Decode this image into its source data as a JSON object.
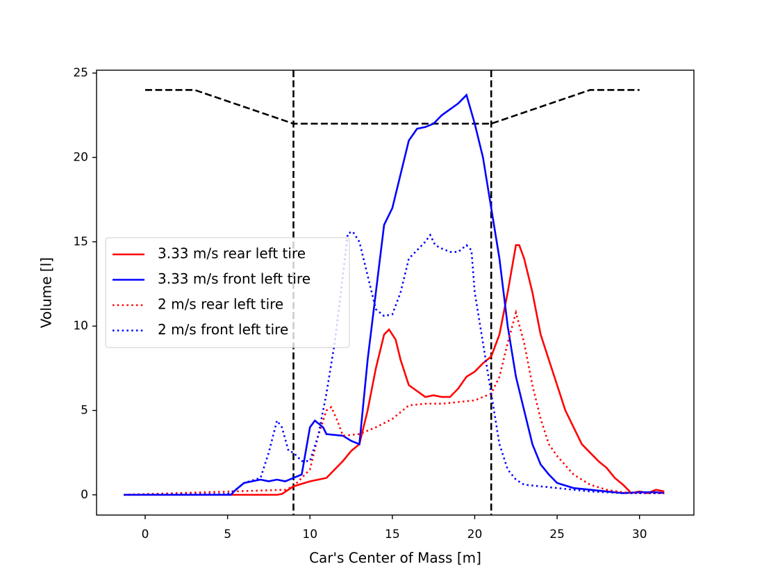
{
  "chart_data": {
    "type": "line",
    "x_label": "Car's Center of Mass [m]",
    "y_label": "Volume [l]",
    "xlim": [
      -2.95,
      33.3
    ],
    "ylim": [
      -1.2,
      25.17
    ],
    "xticks": [
      0,
      5,
      10,
      15,
      20,
      25,
      30
    ],
    "yticks": [
      0,
      5,
      10,
      15,
      20,
      25
    ],
    "grid": false,
    "legend": "center left",
    "vlines": [
      9,
      21
    ],
    "vline_color": "#000000",
    "profile": {
      "color": "#000000",
      "style": "dashed",
      "x": [
        0,
        3,
        9,
        21,
        27,
        30
      ],
      "values": [
        24,
        24,
        22,
        22,
        24,
        24
      ]
    },
    "series": [
      {
        "name": "3.33 m/s rear left tire",
        "color": "#ff0000",
        "style": "solid",
        "x": [
          -1.3,
          5,
          8,
          8.3,
          9,
          10,
          11,
          12,
          12.5,
          13,
          13.5,
          14,
          14.5,
          14.8,
          15.2,
          15.5,
          16,
          17,
          17.5,
          18,
          18.5,
          19,
          19.5,
          20,
          20.5,
          21,
          21.5,
          22,
          22.5,
          22.7,
          23,
          23.5,
          24,
          24.5,
          25,
          25.5,
          26,
          26.5,
          27,
          27.5,
          28,
          28.5,
          29,
          29.5,
          30,
          30.5,
          31,
          31.5
        ],
        "values": [
          0,
          0,
          0,
          0.05,
          0.5,
          0.8,
          1.0,
          2.0,
          2.6,
          3.0,
          5,
          7.5,
          9.5,
          9.8,
          9.2,
          8,
          6.5,
          5.8,
          5.9,
          5.8,
          5.8,
          6.3,
          7,
          7.3,
          7.8,
          8.2,
          9.5,
          12,
          14.8,
          14.8,
          14,
          12,
          9.5,
          8,
          6.5,
          5,
          4,
          3,
          2.5,
          2,
          1.6,
          1,
          0.6,
          0.1,
          0.2,
          0.1,
          0.3,
          0.2
        ]
      },
      {
        "name": "3.33 m/s front left tire",
        "color": "#0000ff",
        "style": "solid",
        "x": [
          -1.3,
          5.2,
          5.5,
          6,
          7,
          7.5,
          8,
          8.5,
          9,
          9.5,
          10,
          10.3,
          10.8,
          11,
          12,
          12.5,
          13,
          13.5,
          14,
          14.5,
          15,
          15.5,
          16,
          16.5,
          17,
          17.5,
          18,
          19,
          19.5,
          20,
          20.5,
          21,
          21.5,
          22,
          22.5,
          23,
          23.5,
          24,
          24.5,
          25,
          26,
          27,
          28,
          29,
          30,
          31,
          31.5
        ],
        "values": [
          0,
          0,
          0.3,
          0.7,
          0.9,
          0.8,
          0.9,
          0.8,
          1,
          1.2,
          4,
          4.4,
          4,
          3.6,
          3.5,
          3.2,
          3,
          8,
          12,
          16,
          17,
          19,
          21,
          21.7,
          21.8,
          22,
          22.5,
          23.2,
          23.7,
          22,
          20,
          17,
          14,
          10,
          7,
          5,
          3,
          1.8,
          1.2,
          0.7,
          0.4,
          0.3,
          0.2,
          0.1,
          0.15,
          0.15,
          0.1
        ]
      },
      {
        "name": "2 m/s rear left tire",
        "color": "#ff0000",
        "style": "dotted",
        "x": [
          -1.3,
          8.5,
          9,
          10,
          10.5,
          11,
          11.3,
          11.7,
          12,
          13,
          14,
          15,
          16,
          17,
          18,
          19,
          20,
          21,
          21.5,
          22,
          22.5,
          23,
          23.5,
          24,
          24.5,
          25,
          26,
          27,
          28,
          29,
          30,
          31.5
        ],
        "values": [
          0,
          0.3,
          0.5,
          1.5,
          3.5,
          5,
          5.2,
          4.3,
          3.5,
          3.6,
          4,
          4.5,
          5.3,
          5.4,
          5.4,
          5.5,
          5.6,
          6,
          7,
          9,
          10.8,
          9,
          6.5,
          4.5,
          3,
          2.3,
          1.2,
          0.6,
          0.3,
          0.15,
          0.1,
          0.1
        ]
      },
      {
        "name": "2 m/s front left tire",
        "color": "#0000ff",
        "style": "dotted",
        "x": [
          -1.3,
          5,
          5.5,
          6,
          7,
          7.5,
          8,
          8.3,
          8.7,
          9,
          9.5,
          10,
          10.5,
          11,
          11.5,
          12,
          12.3,
          12.6,
          13,
          13.5,
          14,
          14.5,
          15,
          15.5,
          16,
          17,
          17.3,
          17.6,
          18,
          18.5,
          19,
          19.5,
          19.8,
          20,
          20.5,
          21,
          21.5,
          22,
          22.5,
          23,
          24,
          25,
          26,
          27,
          28,
          29,
          30,
          31.5
        ],
        "values": [
          0,
          0.05,
          0.3,
          0.7,
          1,
          2.5,
          4.4,
          4,
          2.6,
          2.5,
          2,
          2,
          3.5,
          6,
          9,
          13,
          15.5,
          15.6,
          15,
          13,
          11,
          10.6,
          10.7,
          12,
          14,
          15,
          15.4,
          14.8,
          14.6,
          14.4,
          14.4,
          14.8,
          14.5,
          12,
          9,
          6,
          3,
          1.5,
          0.9,
          0.6,
          0.5,
          0.4,
          0.3,
          0.2,
          0.15,
          0.1,
          0.1,
          0.1
        ]
      }
    ]
  }
}
